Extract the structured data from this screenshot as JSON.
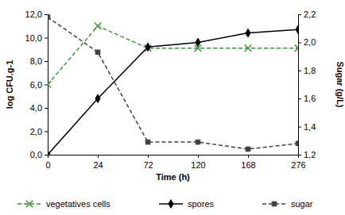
{
  "chart_data": {
    "type": "line",
    "x_label": "Time (h)",
    "y_label": "log CFU.g-1",
    "y2_label": "Sugar (g/L)",
    "categories": [
      "0",
      "24",
      "72",
      "120",
      "168",
      "276"
    ],
    "series": [
      {
        "name": "vegetatives cells",
        "color": "#339933",
        "marker": "x",
        "line_style": "dashed",
        "values": [
          6.0,
          11.0,
          9.1,
          9.1,
          9.1,
          9.1
        ]
      },
      {
        "name": "spores",
        "color": "#000000",
        "marker": "diamond",
        "line_style": "solid",
        "values": [
          0.0,
          4.8,
          9.2,
          9.6,
          10.4,
          10.7
        ]
      },
      {
        "name": "sugar",
        "color": "#404040",
        "marker": "square",
        "line_style": "dashed",
        "axis": "y2",
        "values": [
          2.18,
          1.93,
          1.29,
          1.29,
          1.24,
          1.28
        ]
      }
    ],
    "ylim": [
      0,
      12
    ],
    "yticks": [
      {
        "value": 0,
        "label": "0,0"
      },
      {
        "value": 2,
        "label": "2,0"
      },
      {
        "value": 4,
        "label": "4,0"
      },
      {
        "value": 6,
        "label": "6,0"
      },
      {
        "value": 8,
        "label": "8,0"
      },
      {
        "value": 10,
        "label": "10,0"
      },
      {
        "value": 12,
        "label": "12,0"
      }
    ],
    "y2lim": [
      1.2,
      2.2
    ],
    "y2ticks": [
      {
        "value": 1.2,
        "label": "1,2"
      },
      {
        "value": 1.4,
        "label": "1,4"
      },
      {
        "value": 1.6,
        "label": "1,6"
      },
      {
        "value": 1.8,
        "label": "1,8"
      },
      {
        "value": 2.0,
        "label": "2,0"
      },
      {
        "value": 2.2,
        "label": "2,2"
      }
    ],
    "grid": false,
    "legend": "bottom"
  }
}
